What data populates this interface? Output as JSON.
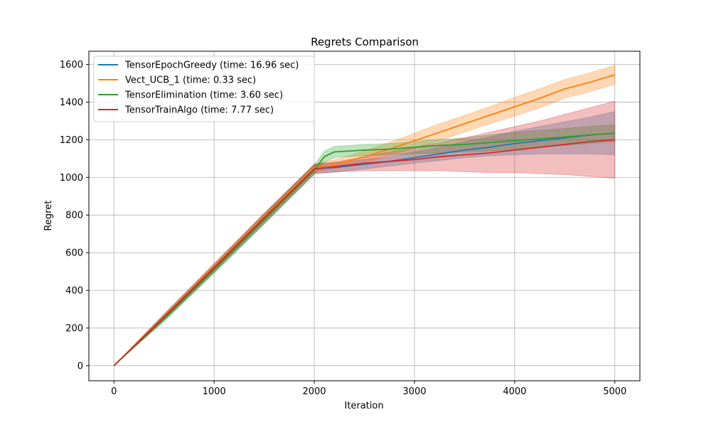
{
  "chart_data": {
    "type": "line",
    "title": "Regrets Comparison",
    "xlabel": "Iteration",
    "ylabel": "Regret",
    "xlim": [
      -250,
      5250
    ],
    "ylim": [
      -80,
      1670
    ],
    "xticks": [
      0,
      1000,
      2000,
      3000,
      4000,
      5000
    ],
    "yticks": [
      0,
      200,
      400,
      600,
      800,
      1000,
      1200,
      1400,
      1600
    ],
    "grid": true,
    "legend_position": "upper-left",
    "series": [
      {
        "name": "TensorEpochGreedy (time: 16.96 sec)",
        "color": "#1f77b4",
        "x": [
          0,
          500,
          1000,
          1500,
          2000,
          2250,
          2500,
          2750,
          3000,
          3250,
          3500,
          3750,
          4000,
          4250,
          4500,
          4750,
          5000
        ],
        "y": [
          0,
          255,
          515,
          780,
          1045,
          1055,
          1070,
          1085,
          1105,
          1125,
          1145,
          1160,
          1180,
          1195,
          1210,
          1225,
          1235
        ],
        "lower": [
          0,
          240,
          495,
          755,
          1020,
          1030,
          1045,
          1060,
          1075,
          1090,
          1105,
          1115,
          1120,
          1125,
          1125,
          1125,
          1120
        ],
        "upper": [
          0,
          270,
          535,
          805,
          1070,
          1080,
          1095,
          1110,
          1135,
          1160,
          1190,
          1215,
          1245,
          1270,
          1295,
          1320,
          1350
        ]
      },
      {
        "name": "Vect_UCB_1 (time: 0.33 sec)",
        "color": "#ff7f0e",
        "x": [
          0,
          500,
          1000,
          1500,
          2000,
          2250,
          2500,
          2750,
          3000,
          3250,
          3500,
          3750,
          4000,
          4250,
          4500,
          4750,
          5000
        ],
        "y": [
          0,
          260,
          525,
          790,
          1050,
          1075,
          1110,
          1150,
          1195,
          1240,
          1285,
          1330,
          1375,
          1420,
          1470,
          1505,
          1545
        ],
        "lower": [
          0,
          245,
          505,
          770,
          1030,
          1050,
          1080,
          1115,
          1155,
          1195,
          1240,
          1285,
          1325,
          1370,
          1420,
          1455,
          1495
        ],
        "upper": [
          0,
          275,
          545,
          810,
          1070,
          1100,
          1140,
          1185,
          1235,
          1285,
          1330,
          1375,
          1425,
          1470,
          1520,
          1555,
          1595
        ]
      },
      {
        "name": "TensorElimination (time: 3.60 sec)",
        "color": "#2ca02c",
        "x": [
          0,
          500,
          1000,
          1500,
          2000,
          2100,
          2200,
          2500,
          2750,
          3000,
          3250,
          3500,
          3750,
          4000,
          4250,
          4500,
          4750,
          5000
        ],
        "y": [
          0,
          250,
          510,
          775,
          1040,
          1110,
          1135,
          1145,
          1150,
          1160,
          1170,
          1175,
          1185,
          1195,
          1205,
          1215,
          1225,
          1235
        ],
        "lower": [
          0,
          235,
          490,
          750,
          1015,
          1080,
          1105,
          1115,
          1120,
          1125,
          1130,
          1135,
          1140,
          1150,
          1160,
          1170,
          1180,
          1190
        ],
        "upper": [
          0,
          265,
          530,
          800,
          1065,
          1140,
          1165,
          1175,
          1180,
          1190,
          1200,
          1210,
          1225,
          1240,
          1250,
          1260,
          1270,
          1280
        ]
      },
      {
        "name": "TensorTrainAlgo (time: 7.77 sec)",
        "color": "#d62728",
        "x": [
          0,
          500,
          1000,
          1500,
          2000,
          2250,
          2500,
          2750,
          3000,
          3250,
          3500,
          3750,
          4000,
          4250,
          4500,
          4750,
          5000
        ],
        "y": [
          0,
          258,
          520,
          785,
          1045,
          1060,
          1075,
          1085,
          1095,
          1110,
          1120,
          1130,
          1145,
          1160,
          1175,
          1190,
          1200
        ],
        "lower": [
          0,
          243,
          500,
          760,
          1020,
          1030,
          1035,
          1035,
          1035,
          1035,
          1030,
          1025,
          1025,
          1020,
          1015,
          1005,
          995
        ],
        "upper": [
          0,
          273,
          540,
          810,
          1070,
          1085,
          1110,
          1135,
          1160,
          1185,
          1210,
          1240,
          1270,
          1300,
          1335,
          1370,
          1405
        ]
      }
    ]
  }
}
